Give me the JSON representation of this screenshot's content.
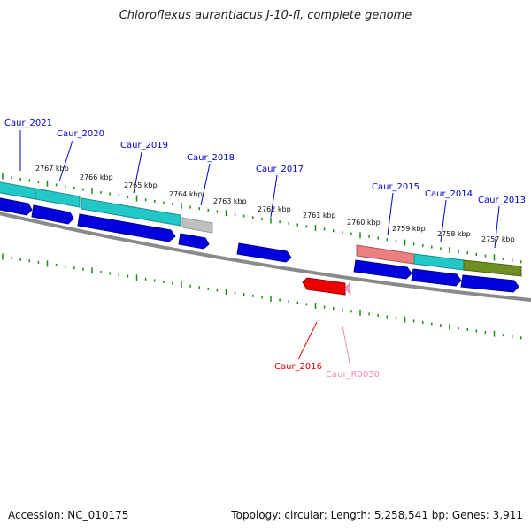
{
  "title": "Chloroflexus aurantiacus J-10-fl, complete genome",
  "footer": {
    "accession": "Accession: NC_010175",
    "topology": "Topology: circular; Length: 5,258,541 bp; Genes: 3,911"
  },
  "colors": {
    "backbone": "#8a8a8a",
    "tick": "#1d8a1d",
    "cds_forward": "#0000dd",
    "cds_reverse": "#ee0000",
    "rna_pseudo": "#f4a6cc",
    "cyan_feature": "#22c8c8",
    "salmon_feature": "#ec7f7f",
    "olive_feature": "#6f8f22",
    "gray_feature": "#c0c0c0",
    "label_forward": "#0000cc",
    "label_reverse": "#dd0000",
    "label_rna": "#ee88bb"
  },
  "scale_labels": [
    "2767 kbp",
    "2766 kbp",
    "2765 kbp",
    "2764 kbp",
    "2763 kbp",
    "2762 kbp",
    "2761 kbp",
    "2760 kbp",
    "2759 kbp",
    "2758 kbp",
    "2757 kbp"
  ],
  "gene_labels": [
    {
      "text": "Caur_2021",
      "kind": "forward"
    },
    {
      "text": "Caur_2020",
      "kind": "forward"
    },
    {
      "text": "Caur_2019",
      "kind": "forward"
    },
    {
      "text": "Caur_2018",
      "kind": "forward"
    },
    {
      "text": "Caur_2017",
      "kind": "forward"
    },
    {
      "text": "Caur_2015",
      "kind": "forward"
    },
    {
      "text": "Caur_2014",
      "kind": "forward"
    },
    {
      "text": "Caur_2013",
      "kind": "forward"
    },
    {
      "text": "Caur_2016",
      "kind": "reverse"
    },
    {
      "text": "Caur_R0030",
      "kind": "rna"
    }
  ]
}
